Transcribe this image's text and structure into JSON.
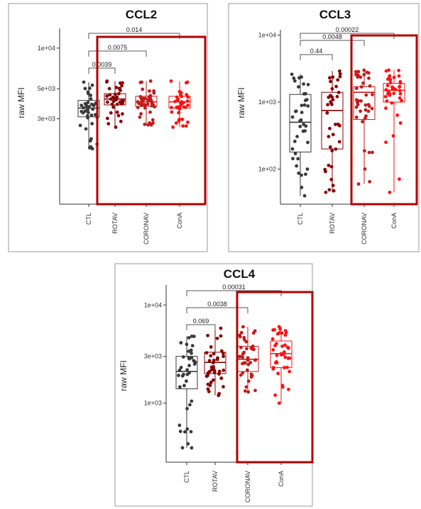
{
  "chart_data": [
    {
      "type": "box",
      "title": "CCL2",
      "ylabel": "raw MFI",
      "scale": "log",
      "ylim": [
        700,
        14000
      ],
      "y_ticks": [
        {
          "value": 10000,
          "label": "1e+04"
        },
        {
          "value": 5000,
          "label": "5e+03"
        },
        {
          "value": 3000,
          "label": "3e+03"
        }
      ],
      "categories": [
        "CTL",
        "ROTAV",
        "CORONAV",
        "ConA"
      ],
      "colors": [
        "#3a3a3a",
        "#8b0000",
        "#c41a1a",
        "#ff1010"
      ],
      "boxes": [
        {
          "min": 1800,
          "q1": 3100,
          "median": 3600,
          "q3": 4100,
          "max": 5600
        },
        {
          "min": 2600,
          "q1": 3800,
          "median": 4200,
          "q3": 4600,
          "max": 5700
        },
        {
          "min": 2700,
          "q1": 3700,
          "median": 4000,
          "q3": 4400,
          "max": 5700
        },
        {
          "min": 2600,
          "q1": 3600,
          "median": 4000,
          "q3": 4400,
          "max": 5700
        }
      ],
      "comparisons": [
        {
          "from": "CTL",
          "to": "ROTAV",
          "label": "0.0039"
        },
        {
          "from": "CTL",
          "to": "CORONAV",
          "label": "0.0075"
        },
        {
          "from": "CTL",
          "to": "ConA",
          "label": "0.014"
        }
      ],
      "highlight": [
        "ROTAV",
        "ConA"
      ]
    },
    {
      "type": "box",
      "title": "CCL3",
      "ylabel": "raw MFI",
      "scale": "log",
      "ylim": [
        30,
        12000
      ],
      "y_ticks": [
        {
          "value": 10000,
          "label": "1e+04"
        },
        {
          "value": 1000,
          "label": "1e+03"
        },
        {
          "value": 100,
          "label": "1e+02"
        }
      ],
      "categories": [
        "CTL",
        "ROTAV",
        "CORONAV",
        "ConA"
      ],
      "colors": [
        "#3a3a3a",
        "#8b0000",
        "#c41a1a",
        "#ff1010"
      ],
      "boxes": [
        {
          "min": 40,
          "q1": 180,
          "median": 500,
          "q3": 1300,
          "max": 2600
        },
        {
          "min": 45,
          "q1": 200,
          "median": 750,
          "q3": 1400,
          "max": 2900
        },
        {
          "min": 60,
          "q1": 550,
          "median": 1400,
          "q3": 1700,
          "max": 3000
        },
        {
          "min": 45,
          "q1": 1000,
          "median": 1500,
          "q3": 1900,
          "max": 3000
        }
      ],
      "comparisons": [
        {
          "from": "CTL",
          "to": "ROTAV",
          "label": "0.44"
        },
        {
          "from": "CTL",
          "to": "CORONAV",
          "label": "0.0048"
        },
        {
          "from": "CTL",
          "to": "ConA",
          "label": "0.00022"
        }
      ],
      "highlight": [
        "CORONAV",
        "ConA"
      ]
    },
    {
      "type": "box",
      "title": "CCL4",
      "ylabel": "raw MFI",
      "scale": "log",
      "ylim": [
        250,
        16000
      ],
      "y_ticks": [
        {
          "value": 10000,
          "label": "1e+04"
        },
        {
          "value": 3000,
          "label": "3e+03"
        },
        {
          "value": 1000,
          "label": "1e+03"
        }
      ],
      "categories": [
        "CTL",
        "ROTAV",
        "CORONAV",
        "ConA"
      ],
      "colors": [
        "#3a3a3a",
        "#8b0000",
        "#c41a1a",
        "#ff1010"
      ],
      "boxes": [
        {
          "min": 350,
          "q1": 1400,
          "median": 2100,
          "q3": 3000,
          "max": 4800
        },
        {
          "min": 1200,
          "q1": 2000,
          "median": 2600,
          "q3": 3300,
          "max": 5800
        },
        {
          "min": 1300,
          "q1": 2100,
          "median": 2800,
          "q3": 3800,
          "max": 6000
        },
        {
          "min": 1000,
          "q1": 2300,
          "median": 3200,
          "q3": 4300,
          "max": 6000
        }
      ],
      "comparisons": [
        {
          "from": "CTL",
          "to": "ROTAV",
          "label": "0.069"
        },
        {
          "from": "CTL",
          "to": "CORONAV",
          "label": "0.0038"
        },
        {
          "from": "CTL",
          "to": "ConA",
          "label": "0.00031"
        }
      ],
      "highlight": [
        "CORONAV",
        "ConA"
      ]
    }
  ]
}
